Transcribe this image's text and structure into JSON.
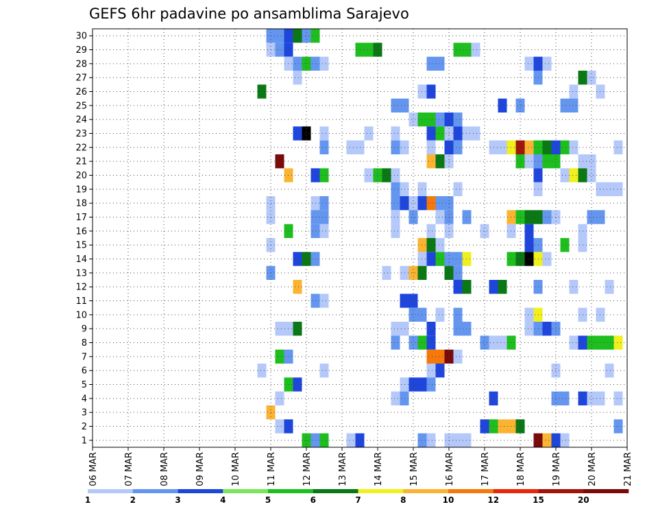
{
  "chart_data": {
    "type": "heatmap",
    "title": "GEFS 6hr padavine po ansamblima Sarajevo",
    "xlabel": "",
    "ylabel": "",
    "x_ticks": [
      "06 MAR",
      "07 MAR",
      "08 MAR",
      "09 MAR",
      "10 MAR",
      "11 MAR",
      "12 MAR",
      "13 MAR",
      "14 MAR",
      "15 MAR",
      "16 MAR",
      "17 MAR",
      "18 MAR",
      "19 MAR",
      "20 MAR",
      "21 MAR"
    ],
    "y_ticks": [
      "1",
      "2",
      "3",
      "4",
      "5",
      "6",
      "7",
      "8",
      "9",
      "10",
      "11",
      "12",
      "13",
      "14",
      "15",
      "16",
      "17",
      "18",
      "19",
      "20",
      "21",
      "22",
      "23",
      "24",
      "25",
      "26",
      "27",
      "28",
      "29",
      "30"
    ],
    "x_unit": "6-hour step from 06 MAR 00Z",
    "grid": true,
    "colorbar": {
      "labels": [
        "1",
        "2",
        "3",
        "4",
        "5",
        "6",
        "7",
        "8",
        "10",
        "12",
        "15",
        "20"
      ],
      "colors": [
        "#b4c8fa",
        "#6496f0",
        "#1e46dc",
        "#78e65a",
        "#1ebe1e",
        "#0a7814",
        "#f0f01e",
        "#fab432",
        "#f5780a",
        "#e6280a",
        "#a0140a",
        "#780a0a"
      ]
    },
    "cells": [
      [
        30,
        20,
        2
      ],
      [
        30,
        21,
        2
      ],
      [
        30,
        22,
        3
      ],
      [
        30,
        23,
        6
      ],
      [
        30,
        24,
        2
      ],
      [
        30,
        25,
        5
      ],
      [
        29,
        20,
        1
      ],
      [
        29,
        21,
        2
      ],
      [
        29,
        22,
        3
      ],
      [
        29,
        30,
        5
      ],
      [
        29,
        31,
        5
      ],
      [
        29,
        32,
        6
      ],
      [
        29,
        41,
        5
      ],
      [
        29,
        42,
        5
      ],
      [
        29,
        43,
        1
      ],
      [
        28,
        22,
        1
      ],
      [
        28,
        23,
        2
      ],
      [
        28,
        24,
        5
      ],
      [
        28,
        25,
        2
      ],
      [
        28,
        26,
        1
      ],
      [
        28,
        38,
        2
      ],
      [
        28,
        39,
        2
      ],
      [
        28,
        49,
        1
      ],
      [
        28,
        50,
        3
      ],
      [
        28,
        51,
        1
      ],
      [
        27,
        23,
        1
      ],
      [
        27,
        50,
        2
      ],
      [
        27,
        55,
        6
      ],
      [
        27,
        56,
        1
      ],
      [
        26,
        19,
        6
      ],
      [
        26,
        37,
        1
      ],
      [
        26,
        38,
        3
      ],
      [
        26,
        54,
        1
      ],
      [
        26,
        57,
        1
      ],
      [
        25,
        34,
        2
      ],
      [
        25,
        35,
        2
      ],
      [
        25,
        46,
        3
      ],
      [
        25,
        48,
        2
      ],
      [
        25,
        53,
        2
      ],
      [
        25,
        54,
        2
      ],
      [
        24,
        36,
        1
      ],
      [
        24,
        37,
        5
      ],
      [
        24,
        38,
        5
      ],
      [
        24,
        39,
        2
      ],
      [
        24,
        40,
        3
      ],
      [
        24,
        41,
        2
      ],
      [
        23,
        23,
        3
      ],
      [
        23,
        24,
        13
      ],
      [
        23,
        26,
        1
      ],
      [
        23,
        31,
        1
      ],
      [
        23,
        34,
        1
      ],
      [
        23,
        38,
        3
      ],
      [
        23,
        39,
        5
      ],
      [
        23,
        40,
        1
      ],
      [
        23,
        41,
        3
      ],
      [
        23,
        42,
        1
      ],
      [
        23,
        43,
        1
      ],
      [
        22,
        26,
        2
      ],
      [
        22,
        29,
        1
      ],
      [
        22,
        30,
        1
      ],
      [
        22,
        34,
        2
      ],
      [
        22,
        35,
        1
      ],
      [
        22,
        38,
        1
      ],
      [
        22,
        40,
        3
      ],
      [
        22,
        41,
        2
      ],
      [
        22,
        45,
        1
      ],
      [
        22,
        46,
        1
      ],
      [
        22,
        47,
        7
      ],
      [
        22,
        48,
        11
      ],
      [
        22,
        49,
        8
      ],
      [
        22,
        50,
        5
      ],
      [
        22,
        51,
        6
      ],
      [
        22,
        52,
        3
      ],
      [
        22,
        53,
        5
      ],
      [
        22,
        54,
        1
      ],
      [
        22,
        59,
        1
      ],
      [
        21,
        21,
        12
      ],
      [
        21,
        38,
        8
      ],
      [
        21,
        39,
        6
      ],
      [
        21,
        40,
        1
      ],
      [
        21,
        48,
        5
      ],
      [
        21,
        49,
        1
      ],
      [
        21,
        50,
        2
      ],
      [
        21,
        51,
        5
      ],
      [
        21,
        52,
        5
      ],
      [
        21,
        55,
        1
      ],
      [
        21,
        56,
        1
      ],
      [
        20,
        22,
        8
      ],
      [
        20,
        25,
        3
      ],
      [
        20,
        26,
        5
      ],
      [
        20,
        31,
        1
      ],
      [
        20,
        32,
        5
      ],
      [
        20,
        33,
        6
      ],
      [
        20,
        34,
        1
      ],
      [
        20,
        50,
        3
      ],
      [
        20,
        53,
        1
      ],
      [
        20,
        54,
        7
      ],
      [
        20,
        55,
        6
      ],
      [
        20,
        56,
        1
      ],
      [
        19,
        34,
        2
      ],
      [
        19,
        35,
        1
      ],
      [
        19,
        37,
        1
      ],
      [
        19,
        41,
        1
      ],
      [
        19,
        50,
        1
      ],
      [
        19,
        57,
        1
      ],
      [
        19,
        58,
        1
      ],
      [
        19,
        59,
        1
      ],
      [
        18,
        20,
        1
      ],
      [
        18,
        25,
        1
      ],
      [
        18,
        26,
        2
      ],
      [
        18,
        34,
        2
      ],
      [
        18,
        35,
        3
      ],
      [
        18,
        36,
        1
      ],
      [
        18,
        37,
        3
      ],
      [
        18,
        38,
        9
      ],
      [
        18,
        39,
        2
      ],
      [
        18,
        40,
        2
      ],
      [
        17,
        20,
        1
      ],
      [
        17,
        25,
        2
      ],
      [
        17,
        26,
        2
      ],
      [
        17,
        34,
        1
      ],
      [
        17,
        36,
        2
      ],
      [
        17,
        39,
        1
      ],
      [
        17,
        40,
        2
      ],
      [
        17,
        42,
        2
      ],
      [
        17,
        47,
        8
      ],
      [
        17,
        48,
        5
      ],
      [
        17,
        49,
        6
      ],
      [
        17,
        50,
        6
      ],
      [
        17,
        51,
        2
      ],
      [
        17,
        52,
        1
      ],
      [
        17,
        56,
        2
      ],
      [
        17,
        57,
        2
      ],
      [
        16,
        22,
        5
      ],
      [
        16,
        25,
        2
      ],
      [
        16,
        26,
        1
      ],
      [
        16,
        34,
        1
      ],
      [
        16,
        38,
        1
      ],
      [
        16,
        40,
        1
      ],
      [
        16,
        44,
        1
      ],
      [
        16,
        47,
        1
      ],
      [
        16,
        49,
        3
      ],
      [
        16,
        55,
        1
      ],
      [
        15,
        20,
        1
      ],
      [
        15,
        37,
        8
      ],
      [
        15,
        38,
        6
      ],
      [
        15,
        39,
        1
      ],
      [
        15,
        49,
        3
      ],
      [
        15,
        50,
        2
      ],
      [
        15,
        53,
        5
      ],
      [
        15,
        55,
        1
      ],
      [
        14,
        23,
        3
      ],
      [
        14,
        24,
        6
      ],
      [
        14,
        25,
        2
      ],
      [
        14,
        37,
        1
      ],
      [
        14,
        38,
        3
      ],
      [
        14,
        39,
        5
      ],
      [
        14,
        40,
        2
      ],
      [
        14,
        41,
        2
      ],
      [
        14,
        42,
        7
      ],
      [
        14,
        47,
        5
      ],
      [
        14,
        48,
        6
      ],
      [
        14,
        49,
        13
      ],
      [
        14,
        50,
        7
      ],
      [
        14,
        51,
        1
      ],
      [
        13,
        20,
        2
      ],
      [
        13,
        33,
        1
      ],
      [
        13,
        35,
        1
      ],
      [
        13,
        36,
        8
      ],
      [
        13,
        37,
        6
      ],
      [
        13,
        40,
        6
      ],
      [
        13,
        41,
        2
      ],
      [
        12,
        23,
        8
      ],
      [
        12,
        41,
        3
      ],
      [
        12,
        42,
        6
      ],
      [
        12,
        45,
        3
      ],
      [
        12,
        46,
        6
      ],
      [
        12,
        50,
        2
      ],
      [
        12,
        54,
        1
      ],
      [
        12,
        58,
        1
      ],
      [
        11,
        25,
        2
      ],
      [
        11,
        26,
        1
      ],
      [
        11,
        35,
        3
      ],
      [
        11,
        36,
        3
      ],
      [
        10,
        36,
        2
      ],
      [
        10,
        37,
        2
      ],
      [
        10,
        39,
        1
      ],
      [
        10,
        41,
        2
      ],
      [
        10,
        49,
        1
      ],
      [
        10,
        50,
        7
      ],
      [
        10,
        55,
        1
      ],
      [
        10,
        57,
        1
      ],
      [
        9,
        21,
        1
      ],
      [
        9,
        22,
        1
      ],
      [
        9,
        23,
        6
      ],
      [
        9,
        34,
        1
      ],
      [
        9,
        35,
        1
      ],
      [
        9,
        38,
        3
      ],
      [
        9,
        41,
        2
      ],
      [
        9,
        42,
        2
      ],
      [
        9,
        49,
        1
      ],
      [
        9,
        50,
        2
      ],
      [
        9,
        51,
        3
      ],
      [
        9,
        52,
        2
      ],
      [
        8,
        34,
        2
      ],
      [
        8,
        36,
        2
      ],
      [
        8,
        37,
        5
      ],
      [
        8,
        38,
        3
      ],
      [
        8,
        44,
        2
      ],
      [
        8,
        45,
        1
      ],
      [
        8,
        46,
        1
      ],
      [
        8,
        47,
        5
      ],
      [
        8,
        54,
        1
      ],
      [
        8,
        55,
        3
      ],
      [
        8,
        56,
        5
      ],
      [
        8,
        57,
        5
      ],
      [
        8,
        58,
        5
      ],
      [
        8,
        59,
        7
      ],
      [
        7,
        21,
        5
      ],
      [
        7,
        22,
        2
      ],
      [
        7,
        38,
        9
      ],
      [
        7,
        39,
        9
      ],
      [
        7,
        40,
        12
      ],
      [
        7,
        41,
        1
      ],
      [
        6,
        19,
        1
      ],
      [
        6,
        26,
        1
      ],
      [
        6,
        38,
        1
      ],
      [
        6,
        39,
        3
      ],
      [
        6,
        52,
        1
      ],
      [
        6,
        58,
        1
      ],
      [
        5,
        22,
        5
      ],
      [
        5,
        23,
        3
      ],
      [
        5,
        35,
        1
      ],
      [
        5,
        36,
        3
      ],
      [
        5,
        37,
        3
      ],
      [
        5,
        38,
        2
      ],
      [
        4,
        21,
        1
      ],
      [
        4,
        34,
        1
      ],
      [
        4,
        35,
        2
      ],
      [
        4,
        45,
        3
      ],
      [
        4,
        52,
        2
      ],
      [
        4,
        53,
        2
      ],
      [
        4,
        55,
        3
      ],
      [
        4,
        56,
        1
      ],
      [
        4,
        57,
        1
      ],
      [
        4,
        59,
        1
      ],
      [
        3,
        20,
        8
      ],
      [
        2,
        21,
        1
      ],
      [
        2,
        22,
        3
      ],
      [
        2,
        44,
        3
      ],
      [
        2,
        45,
        5
      ],
      [
        2,
        46,
        8
      ],
      [
        2,
        47,
        8
      ],
      [
        2,
        48,
        6
      ],
      [
        2,
        59,
        2
      ],
      [
        1,
        24,
        5
      ],
      [
        1,
        25,
        2
      ],
      [
        1,
        26,
        5
      ],
      [
        1,
        29,
        1
      ],
      [
        1,
        30,
        3
      ],
      [
        1,
        37,
        2
      ],
      [
        1,
        38,
        1
      ],
      [
        1,
        40,
        1
      ],
      [
        1,
        41,
        1
      ],
      [
        1,
        42,
        1
      ],
      [
        1,
        50,
        12
      ],
      [
        1,
        51,
        8
      ],
      [
        1,
        52,
        3
      ],
      [
        1,
        53,
        1
      ]
    ]
  }
}
